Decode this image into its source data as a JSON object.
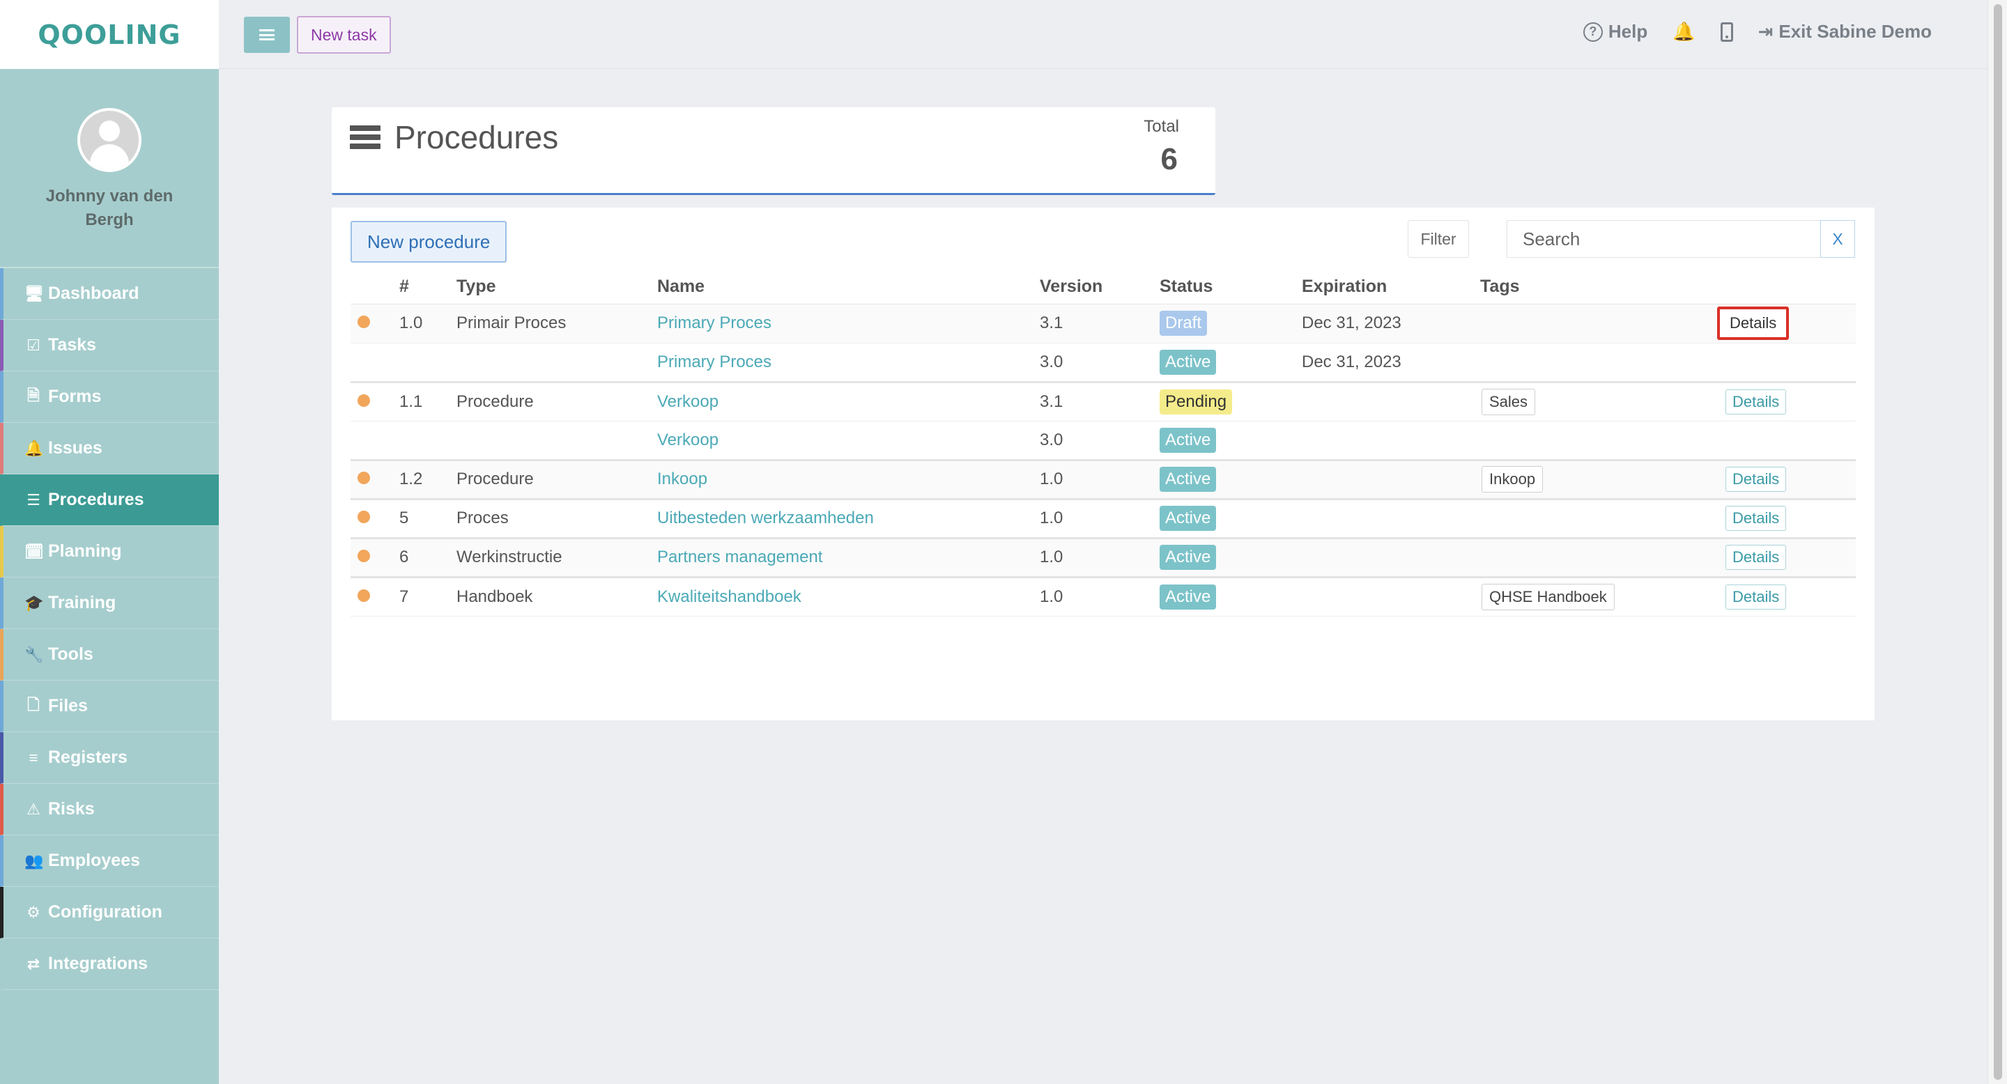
{
  "app": {
    "logo": "QOOLING"
  },
  "user": {
    "name": "Johnny van den Bergh"
  },
  "sidebar": {
    "items": [
      {
        "label": "Dashboard",
        "icon": "monitor-icon",
        "accent": "#6fa8d8",
        "glyph": "🖥"
      },
      {
        "label": "Tasks",
        "icon": "check-square-icon",
        "accent": "#8a5bb5",
        "glyph": "☑"
      },
      {
        "label": "Forms",
        "icon": "file-icon",
        "accent": "#6fa8d8",
        "glyph": "🗎"
      },
      {
        "label": "Issues",
        "icon": "bell-icon",
        "accent": "#e07b7b",
        "glyph": "🔔"
      },
      {
        "label": "Procedures",
        "icon": "list-icon",
        "accent": "#3b9b94",
        "glyph": "☰"
      },
      {
        "label": "Planning",
        "icon": "calendar-icon",
        "accent": "#e8c84a",
        "glyph": "🗓"
      },
      {
        "label": "Training",
        "icon": "graduation-cap-icon",
        "accent": "#6fa8d8",
        "glyph": "🎓"
      },
      {
        "label": "Tools",
        "icon": "wrench-icon",
        "accent": "#e8a45a",
        "glyph": "🔧"
      },
      {
        "label": "Files",
        "icon": "document-icon",
        "accent": "#6fa8d8",
        "glyph": "🗋"
      },
      {
        "label": "Registers",
        "icon": "list-lines-icon",
        "accent": "#4a58a8",
        "glyph": "≡"
      },
      {
        "label": "Risks",
        "icon": "warning-icon",
        "accent": "#e05a4a",
        "glyph": "⚠"
      },
      {
        "label": "Employees",
        "icon": "users-icon",
        "accent": "#6fa8d8",
        "glyph": "👥"
      },
      {
        "label": "Configuration",
        "icon": "gear-icon",
        "accent": "#222222",
        "glyph": "⚙"
      },
      {
        "label": "Integrations",
        "icon": "exchange-icon",
        "accent": "#a6cdcd",
        "glyph": "⇄"
      }
    ],
    "active": "Procedures"
  },
  "header": {
    "new_task_label": "New task",
    "help_label": "Help",
    "exit_label": "Exit Sabine Demo"
  },
  "title_card": {
    "title": "Procedures",
    "total_label": "Total",
    "total_value": "6"
  },
  "toolbar": {
    "new_procedure_label": "New procedure",
    "filter_label": "Filter",
    "search_placeholder": "Search",
    "clear_label": "X"
  },
  "table": {
    "columns": [
      "#",
      "Type",
      "Name",
      "Version",
      "Status",
      "Expiration",
      "Tags"
    ],
    "rows": [
      {
        "dot": true,
        "num": "1.0",
        "type": "Primair Proces",
        "name": "Primary Proces",
        "version": "3.1",
        "status": "Draft",
        "expiration": "Dec 31, 2023",
        "tag": "",
        "details": "Details"
      },
      {
        "dot": false,
        "num": "",
        "type": "",
        "name": "Primary Proces",
        "version": "3.0",
        "status": "Active",
        "expiration": "Dec 31, 2023",
        "tag": "",
        "details": ""
      },
      {
        "dot": true,
        "num": "1.1",
        "type": "Procedure",
        "name": "Verkoop",
        "version": "3.1",
        "status": "Pending",
        "expiration": "",
        "tag": "Sales",
        "details": "Details"
      },
      {
        "dot": false,
        "num": "",
        "type": "",
        "name": "Verkoop",
        "version": "3.0",
        "status": "Active",
        "expiration": "",
        "tag": "",
        "details": ""
      },
      {
        "dot": true,
        "num": "1.2",
        "type": "Procedure",
        "name": "Inkoop",
        "version": "1.0",
        "status": "Active",
        "expiration": "",
        "tag": "Inkoop",
        "details": "Details"
      },
      {
        "dot": true,
        "num": "5",
        "type": "Proces",
        "name": "Uitbesteden werkzaamheden",
        "version": "1.0",
        "status": "Active",
        "expiration": "",
        "tag": "",
        "details": "Details"
      },
      {
        "dot": true,
        "num": "6",
        "type": "Werkinstructie",
        "name": "Partners management",
        "version": "1.0",
        "status": "Active",
        "expiration": "",
        "tag": "",
        "details": "Details"
      },
      {
        "dot": true,
        "num": "7",
        "type": "Handboek",
        "name": "Kwaliteitshandboek",
        "version": "1.0",
        "status": "Active",
        "expiration": "",
        "tag": "QHSE Handboek",
        "details": "Details"
      }
    ]
  },
  "colors": {
    "brand": "#3d9e98",
    "sidebar_bg": "#a6cdcd",
    "active_nav": "#3b9b94",
    "status_dot": "#f1a65b",
    "link": "#4ba9b6",
    "highlight_border": "#d93128"
  }
}
